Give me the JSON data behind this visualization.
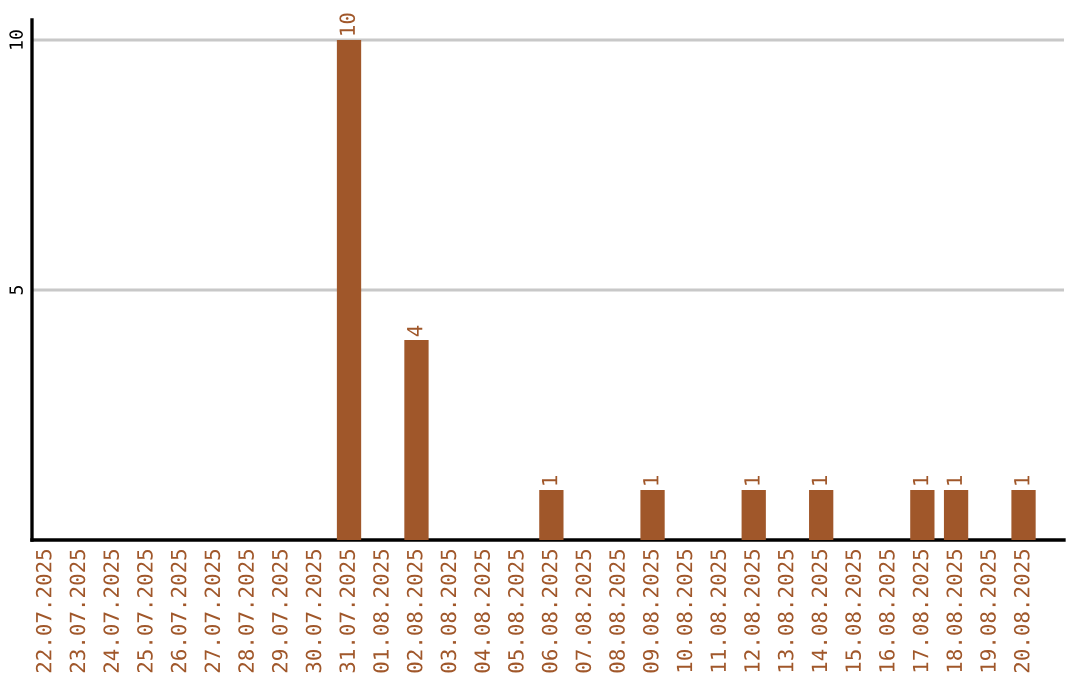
{
  "chart_data": {
    "type": "bar",
    "categories": [
      "22.07.2025",
      "23.07.2025",
      "24.07.2025",
      "25.07.2025",
      "26.07.2025",
      "27.07.2025",
      "28.07.2025",
      "29.07.2025",
      "30.07.2025",
      "31.07.2025",
      "01.08.2025",
      "02.08.2025",
      "03.08.2025",
      "04.08.2025",
      "05.08.2025",
      "06.08.2025",
      "07.08.2025",
      "08.08.2025",
      "09.08.2025",
      "10.08.2025",
      "11.08.2025",
      "12.08.2025",
      "13.08.2025",
      "14.08.2025",
      "15.08.2025",
      "16.08.2025",
      "17.08.2025",
      "18.08.2025",
      "19.08.2025",
      "20.08.2025"
    ],
    "values": [
      0,
      0,
      0,
      0,
      0,
      0,
      0,
      0,
      0,
      10,
      0,
      4,
      0,
      0,
      0,
      1,
      0,
      0,
      1,
      0,
      0,
      1,
      0,
      1,
      0,
      0,
      1,
      1,
      0,
      1
    ],
    "value_labels": [
      null,
      null,
      null,
      null,
      null,
      null,
      null,
      null,
      null,
      "10",
      null,
      "4",
      null,
      null,
      null,
      "1",
      null,
      null,
      "1",
      null,
      null,
      "1",
      null,
      "1",
      null,
      null,
      "1",
      "1",
      null,
      "1"
    ],
    "color": "#a0572a",
    "ylim": [
      0,
      10.4
    ],
    "yticks": [
      5,
      10
    ],
    "grid": "y"
  }
}
